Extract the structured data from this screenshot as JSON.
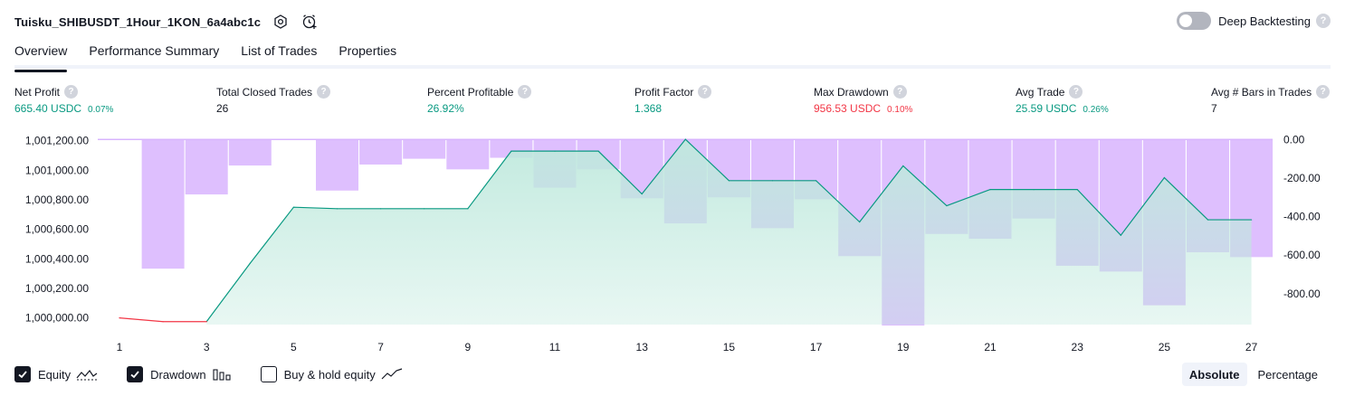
{
  "header": {
    "title": "Tuisku_SHIBUSDT_1Hour_1KON_6a4abc1c",
    "settings_icon": "hexagon-gear-icon",
    "alert_icon": "alarm-clock-plus-icon"
  },
  "deep_backtesting": {
    "label": "Deep Backtesting",
    "enabled": false,
    "help": "?"
  },
  "tabs": [
    {
      "label": "Overview",
      "active": true
    },
    {
      "label": "Performance Summary",
      "active": false
    },
    {
      "label": "List of Trades",
      "active": false
    },
    {
      "label": "Properties",
      "active": false
    }
  ],
  "metrics": [
    {
      "label": "Net Profit",
      "value": "665.40 USDC",
      "pct": "0.07%",
      "tone": "pos"
    },
    {
      "label": "Total Closed Trades",
      "value": "26",
      "pct": "",
      "tone": "neu"
    },
    {
      "label": "Percent Profitable",
      "value": "26.92%",
      "pct": "",
      "tone": "pos"
    },
    {
      "label": "Profit Factor",
      "value": "1.368",
      "pct": "",
      "tone": "pos"
    },
    {
      "label": "Max Drawdown",
      "value": "956.53 USDC",
      "pct": "0.10%",
      "tone": "neg"
    },
    {
      "label": "Avg Trade",
      "value": "25.59 USDC",
      "pct": "0.26%",
      "tone": "pos"
    },
    {
      "label": "Avg # Bars in Trades",
      "value": "7",
      "pct": "",
      "tone": "neu"
    }
  ],
  "colors": {
    "equity_line": "#089981",
    "equity_negative": "#f23645",
    "equity_fill": "#bfe9dd",
    "drawdown_bar": "#d8b4fe",
    "overlap": "#b7b3e6",
    "text": "#131722",
    "muted": "#787b86"
  },
  "chart_data": {
    "type": "line+bar",
    "x": [
      1,
      2,
      3,
      4,
      5,
      6,
      7,
      8,
      9,
      10,
      11,
      12,
      13,
      14,
      15,
      16,
      17,
      18,
      19,
      20,
      21,
      22,
      23,
      24,
      25,
      26,
      27
    ],
    "x_tick_labels": [
      "1",
      "3",
      "5",
      "7",
      "9",
      "11",
      "13",
      "15",
      "17",
      "19",
      "21",
      "23",
      "25",
      "27"
    ],
    "series": [
      {
        "legend_label": "Equity",
        "axis": "left",
        "values": [
          1000000,
          999975,
          999975,
          1000370,
          1000750,
          1000740,
          1000740,
          1000740,
          1000740,
          1001130,
          1001130,
          1001130,
          1000840,
          1001210,
          1000930,
          1000930,
          1000930,
          1000650,
          1001030,
          1000760,
          1000870,
          1000870,
          1000870,
          1000560,
          1000950,
          1000665,
          1000665
        ]
      },
      {
        "legend_label": "Drawdown",
        "axis": "right",
        "values": [
          0,
          -670,
          -285,
          -135,
          0,
          -265,
          -130,
          -100,
          -155,
          -95,
          -250,
          -155,
          -305,
          -435,
          -300,
          -460,
          -310,
          -605,
          -965,
          -490,
          -515,
          -410,
          -655,
          -685,
          -860,
          -585,
          -610
        ]
      }
    ],
    "left_axis": {
      "ticks": [
        1000000,
        1000200,
        1000400,
        1000600,
        1000800,
        1001000,
        1001200
      ],
      "tick_labels": [
        "1,000,000.00",
        "1,000,200.00",
        "1,000,400.00",
        "1,000,600.00",
        "1,000,800.00",
        "1,001,000.00",
        "1,001,200.00"
      ],
      "range": [
        999955,
        1001235
      ]
    },
    "right_axis": {
      "ticks": [
        0,
        -200,
        -400,
        -600,
        -800
      ],
      "tick_labels": [
        "0.00",
        "-200.00",
        "-400.00",
        "-600.00",
        "-800.00"
      ],
      "range": [
        -960,
        20
      ]
    },
    "grid": false
  },
  "legend": [
    {
      "label": "Equity",
      "checked": true,
      "icon": "equity-line-icon"
    },
    {
      "label": "Drawdown",
      "checked": true,
      "icon": "drawdown-bars-icon"
    },
    {
      "label": "Buy & hold equity",
      "checked": false,
      "icon": "buy-hold-line-icon"
    }
  ],
  "modes": [
    {
      "label": "Absolute",
      "active": true
    },
    {
      "label": "Percentage",
      "active": false
    }
  ]
}
